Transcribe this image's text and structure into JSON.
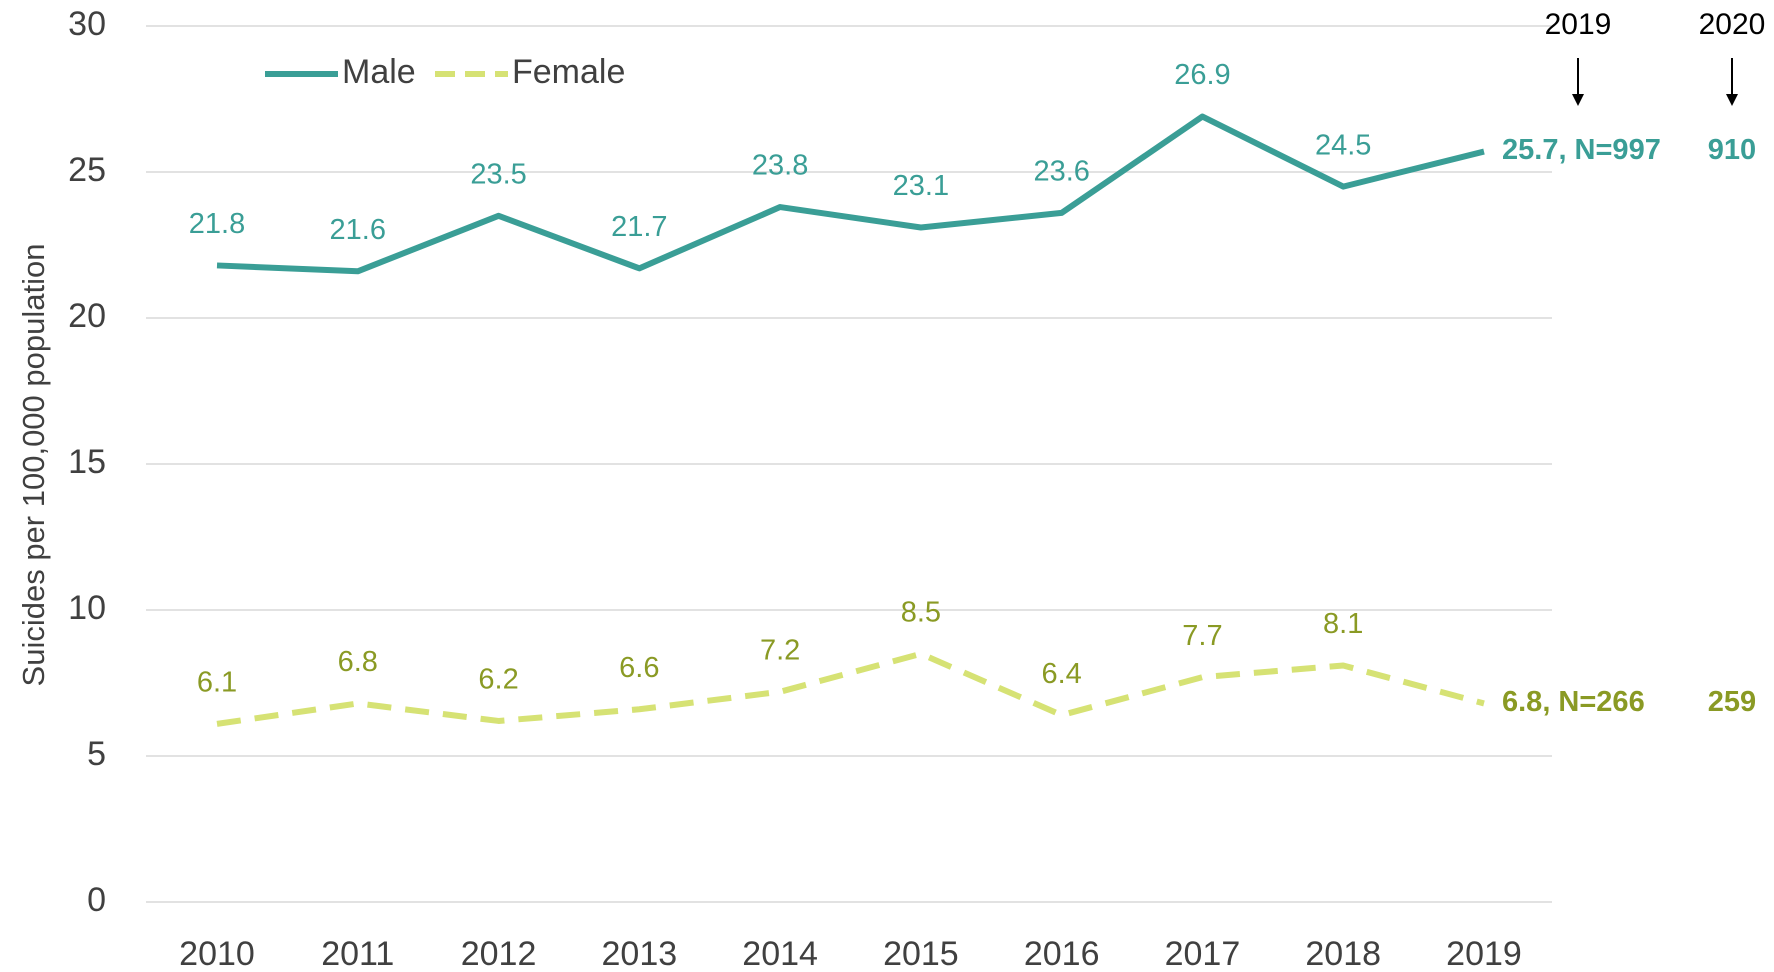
{
  "chart_data": {
    "type": "line",
    "y_label": "Suicides per 100,000 population",
    "x": [
      2010,
      2011,
      2012,
      2013,
      2014,
      2015,
      2016,
      2017,
      2018,
      2019
    ],
    "series": [
      {
        "name": "Male",
        "color": "#3a9e96",
        "label_color": "#3a9e96",
        "dash": false,
        "values": [
          21.8,
          21.6,
          23.5,
          21.7,
          23.8,
          23.1,
          23.6,
          26.9,
          24.5,
          25.7
        ],
        "value_labels": [
          "21.8",
          "21.6",
          "23.5",
          "21.7",
          "23.8",
          "23.1",
          "23.6",
          "26.9",
          "24.5",
          "25.7, N=997"
        ]
      },
      {
        "name": "Female",
        "color": "#d6e274",
        "label_color": "#8a9a24",
        "dash": true,
        "values": [
          6.1,
          6.8,
          6.2,
          6.6,
          7.2,
          8.5,
          6.4,
          7.7,
          8.1,
          6.8
        ],
        "value_labels": [
          "6.1",
          "6.8",
          "6.2",
          "6.6",
          "7.2",
          "8.5",
          "6.4",
          "7.7",
          "8.1",
          "6.8, N=266"
        ]
      }
    ],
    "annotations": [
      "2019",
      "2020",
      "910",
      "259"
    ],
    "ylim": [
      0,
      30
    ],
    "yticks": [
      0,
      5,
      10,
      15,
      20,
      25,
      30
    ],
    "grid": true,
    "legend": "top-left"
  }
}
